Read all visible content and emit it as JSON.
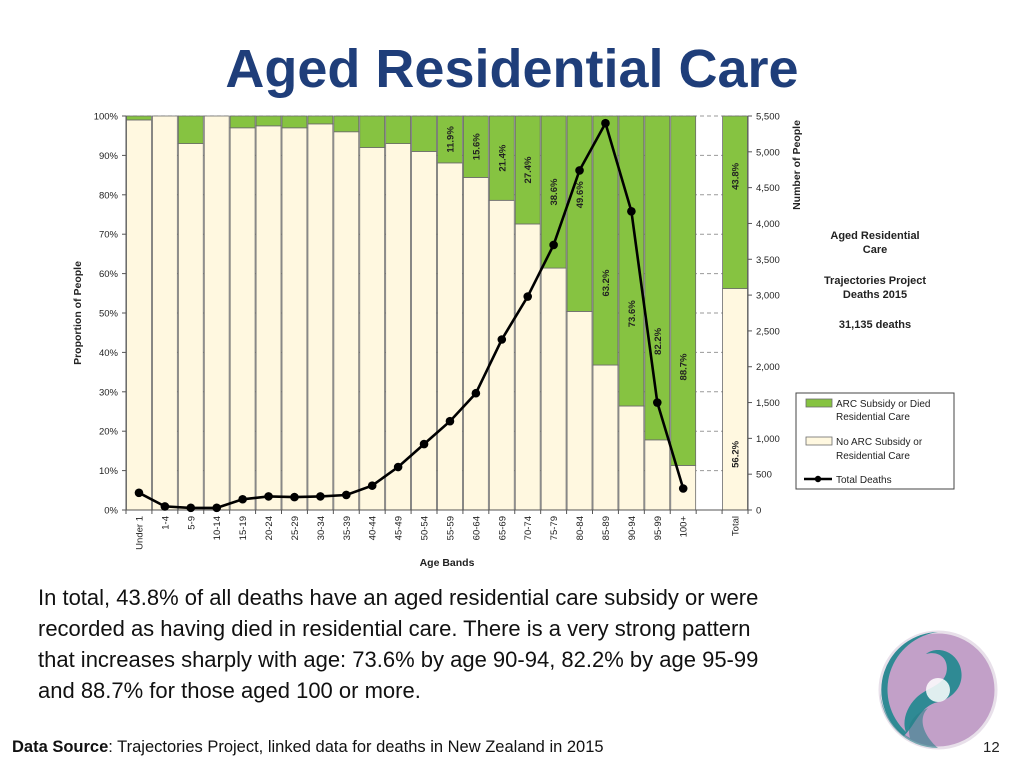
{
  "slide": {
    "title": "Aged Residential Care",
    "body_lines": [
      "In total, 43.8% of all deaths have an aged residential care subsidy or were",
      "recorded as having died in residential care. There is a very strong pattern",
      "that increases sharply with age: 73.6% by age 90-94,  82.2% by age 95-99",
      "and 88.7% for those aged 100 or more."
    ],
    "footer_label": "Data Source",
    "footer_text": ": Trajectories Project, linked data for deaths in New Zealand in 2015",
    "page_number": "12"
  },
  "chart_data": {
    "type": "bar",
    "stacked": true,
    "categories": [
      "Under 1",
      "1-4",
      "5-9",
      "10-14",
      "15-19",
      "20-24",
      "25-29",
      "30-34",
      "35-39",
      "40-44",
      "45-49",
      "50-54",
      "55-59",
      "60-64",
      "65-69",
      "70-74",
      "75-79",
      "80-84",
      "85-89",
      "90-94",
      "95-99",
      "100+",
      "",
      "Total"
    ],
    "series": [
      {
        "name": "ARC Subsidy or Died Residential Care",
        "color": "#86c341",
        "values": [
          1,
          0,
          7,
          0,
          3,
          2.5,
          3,
          2,
          4,
          8,
          7,
          9,
          11.9,
          15.6,
          21.4,
          27.4,
          38.6,
          49.6,
          63.2,
          73.6,
          82.2,
          88.7,
          null,
          43.8
        ]
      },
      {
        "name": "No ARC Subsidy or Residential Care",
        "color": "#fff8e0",
        "values": [
          99,
          100,
          93,
          100,
          97,
          97.5,
          97,
          98,
          96,
          92,
          93,
          91,
          88.1,
          84.4,
          78.6,
          72.6,
          61.4,
          50.4,
          36.8,
          26.4,
          17.8,
          11.3,
          null,
          56.2
        ]
      }
    ],
    "line_series": {
      "name": "Total Deaths",
      "axis": "right",
      "color": "#000000",
      "values": [
        240,
        50,
        30,
        30,
        150,
        190,
        180,
        190,
        210,
        340,
        600,
        920,
        1240,
        1630,
        2380,
        2980,
        3700,
        4740,
        5400,
        4170,
        1500,
        300
      ]
    },
    "data_labels": [
      {
        "index": 12,
        "text": "11.9%"
      },
      {
        "index": 13,
        "text": "15.6%"
      },
      {
        "index": 14,
        "text": "21.4%"
      },
      {
        "index": 15,
        "text": "27.4%"
      },
      {
        "index": 16,
        "text": "38.6%"
      },
      {
        "index": 17,
        "text": "49.6%"
      },
      {
        "index": 18,
        "text": "63.2%"
      },
      {
        "index": 19,
        "text": "73.6%"
      },
      {
        "index": 20,
        "text": "82.2%"
      },
      {
        "index": 21,
        "text": "88.7%"
      },
      {
        "index": 23,
        "text": "43.8%",
        "series": 0
      },
      {
        "index": 23,
        "text": "56.2%",
        "series": 1
      }
    ],
    "ylabel": "Proportion of People",
    "y2label": "Number of People",
    "xlabel": "Age Bands",
    "ylim": [
      0,
      100
    ],
    "y2lim": [
      0,
      5500
    ],
    "yticks": [
      "0%",
      "10%",
      "20%",
      "30%",
      "40%",
      "50%",
      "60%",
      "70%",
      "80%",
      "90%",
      "100%"
    ],
    "y2ticks": [
      "0",
      "500",
      "1,000",
      "1,500",
      "2,000",
      "2,500",
      "3,000",
      "3,500",
      "4,000",
      "4,500",
      "5,000",
      "5,500"
    ],
    "annotation_lines": [
      "Aged Residential",
      "Care",
      "Trajectories Project",
      "Deaths 2015",
      "31,135 deaths"
    ],
    "legend": {
      "placement": "right",
      "entries": [
        {
          "lines": [
            "ARC Subsidy or Died",
            "Residential Care"
          ],
          "swatch": "green"
        },
        {
          "lines": [
            "No ARC Subsidy or",
            "Residential Care"
          ],
          "swatch": "cream"
        },
        {
          "lines": [
            "Total Deaths"
          ],
          "swatch": "line"
        }
      ]
    },
    "colors": {
      "green": "#86c341",
      "cream": "#fff8e0",
      "line": "#000000"
    }
  }
}
